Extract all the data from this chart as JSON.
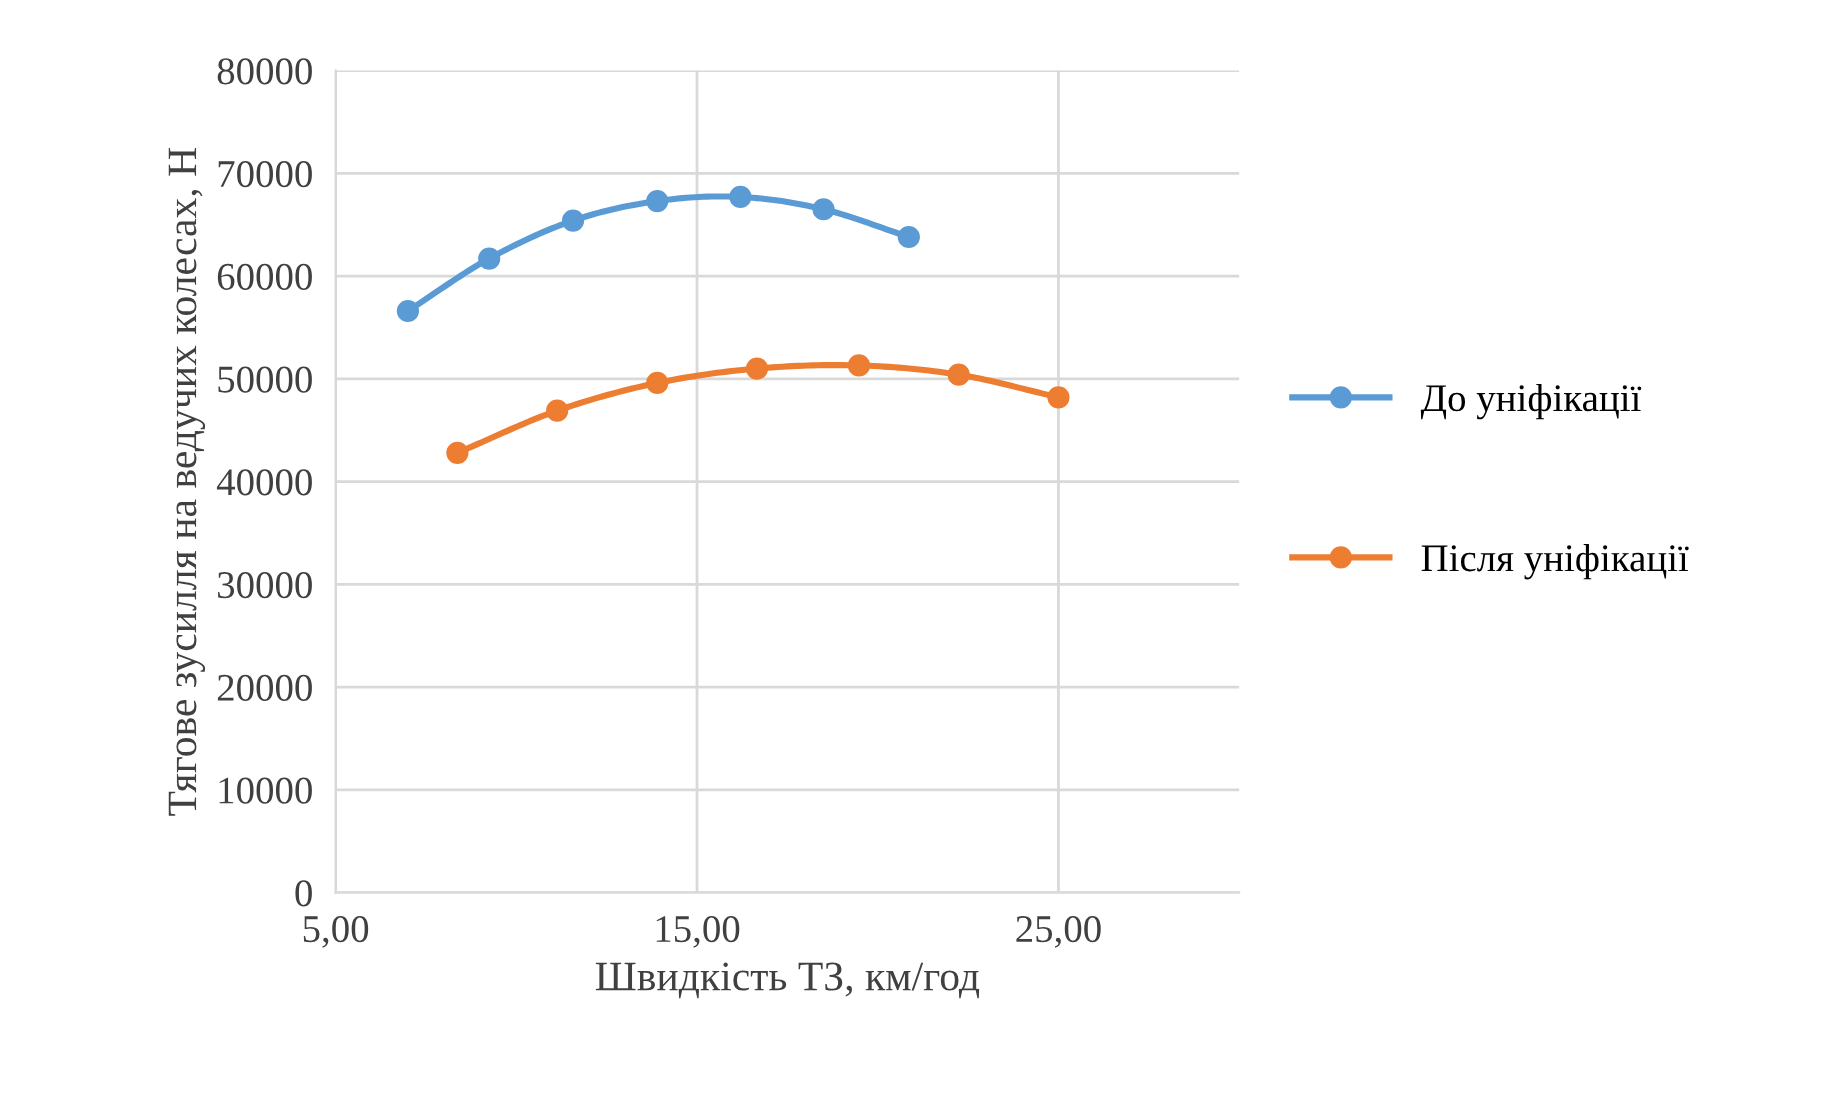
{
  "chart_data": {
    "type": "line",
    "xlabel": "Швидкість ТЗ, км/год",
    "ylabel": "Тягове зусилля на ведучих колесах, Н",
    "xlim": [
      5,
      30
    ],
    "xticks": [
      {
        "value": 5,
        "label": "5,00"
      },
      {
        "value": 15,
        "label": "15,00"
      },
      {
        "value": 25,
        "label": "25,00"
      }
    ],
    "ylim": [
      0,
      80000
    ],
    "yticks": [
      0,
      10000,
      20000,
      30000,
      40000,
      50000,
      60000,
      70000,
      80000
    ],
    "grid": true,
    "legend": "right",
    "marker": "circle",
    "line_style": "solid",
    "series": [
      {
        "name": "До уніфікації",
        "color": "#5b9bd5",
        "x": [
          7.0,
          9.25,
          11.57,
          13.9,
          16.2,
          18.5,
          20.86
        ],
        "values": [
          56600,
          61700,
          65400,
          67300,
          67700,
          66500,
          63800
        ]
      },
      {
        "name": "Після уніфікації",
        "color": "#ed7d31",
        "x": [
          8.37,
          11.13,
          13.9,
          16.66,
          19.48,
          22.24,
          25.0
        ],
        "values": [
          42800,
          46900,
          49600,
          51000,
          51300,
          50400,
          48200
        ]
      }
    ]
  }
}
